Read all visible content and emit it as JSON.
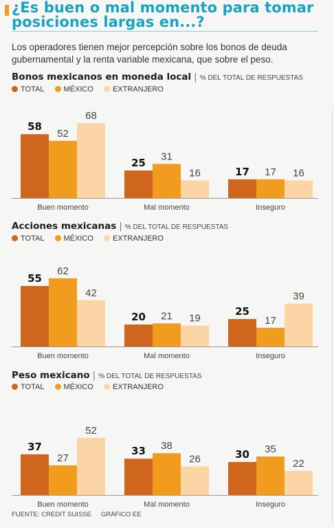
{
  "title": "¿Es buen o mal momento para tomar posiciones largas en...?",
  "subtitle": "Los operadores tienen mejor percepción sobre los bonos de deuda gubernamental y la renta variable mexicana, que sobre el peso.",
  "unit_label": "% DEL TOTAL DE RESPUESTAS",
  "source": "FUENTE: CREDIT SUISSE",
  "credit": "GRÁFICO EE",
  "colors": {
    "title": "#18a3bf",
    "total": "#d0661e",
    "mexico": "#f29c1f",
    "extranjero": "#fcd5a6"
  },
  "chart_data": [
    {
      "type": "bar",
      "title": "Bonos mexicanos en moneda local",
      "categories": [
        "Buen momento",
        "Mal momento",
        "Inseguro"
      ],
      "series": [
        {
          "name": "TOTAL",
          "values": [
            58,
            25,
            17
          ]
        },
        {
          "name": "MÉXICO",
          "values": [
            52,
            31,
            17
          ]
        },
        {
          "name": "EXTRANJERO",
          "values": [
            68,
            16,
            16
          ]
        }
      ],
      "ylim": [
        0,
        75
      ]
    },
    {
      "type": "bar",
      "title": "Acciones mexicanas",
      "categories": [
        "Buen momento",
        "Mal momento",
        "Inseguro"
      ],
      "series": [
        {
          "name": "TOTAL",
          "values": [
            55,
            20,
            25
          ]
        },
        {
          "name": "MÉXICO",
          "values": [
            62,
            21,
            17
          ]
        },
        {
          "name": "EXTRANJERO",
          "values": [
            42,
            19,
            39
          ]
        }
      ],
      "ylim": [
        0,
        75
      ]
    },
    {
      "type": "bar",
      "title": "Peso mexicano",
      "categories": [
        "Buen momento",
        "Mal momento",
        "Inseguro"
      ],
      "series": [
        {
          "name": "TOTAL",
          "values": [
            37,
            33,
            30
          ]
        },
        {
          "name": "MÉXICO",
          "values": [
            27,
            38,
            35
          ]
        },
        {
          "name": "EXTRANJERO",
          "values": [
            52,
            26,
            22
          ]
        }
      ],
      "ylim": [
        0,
        75
      ]
    }
  ]
}
